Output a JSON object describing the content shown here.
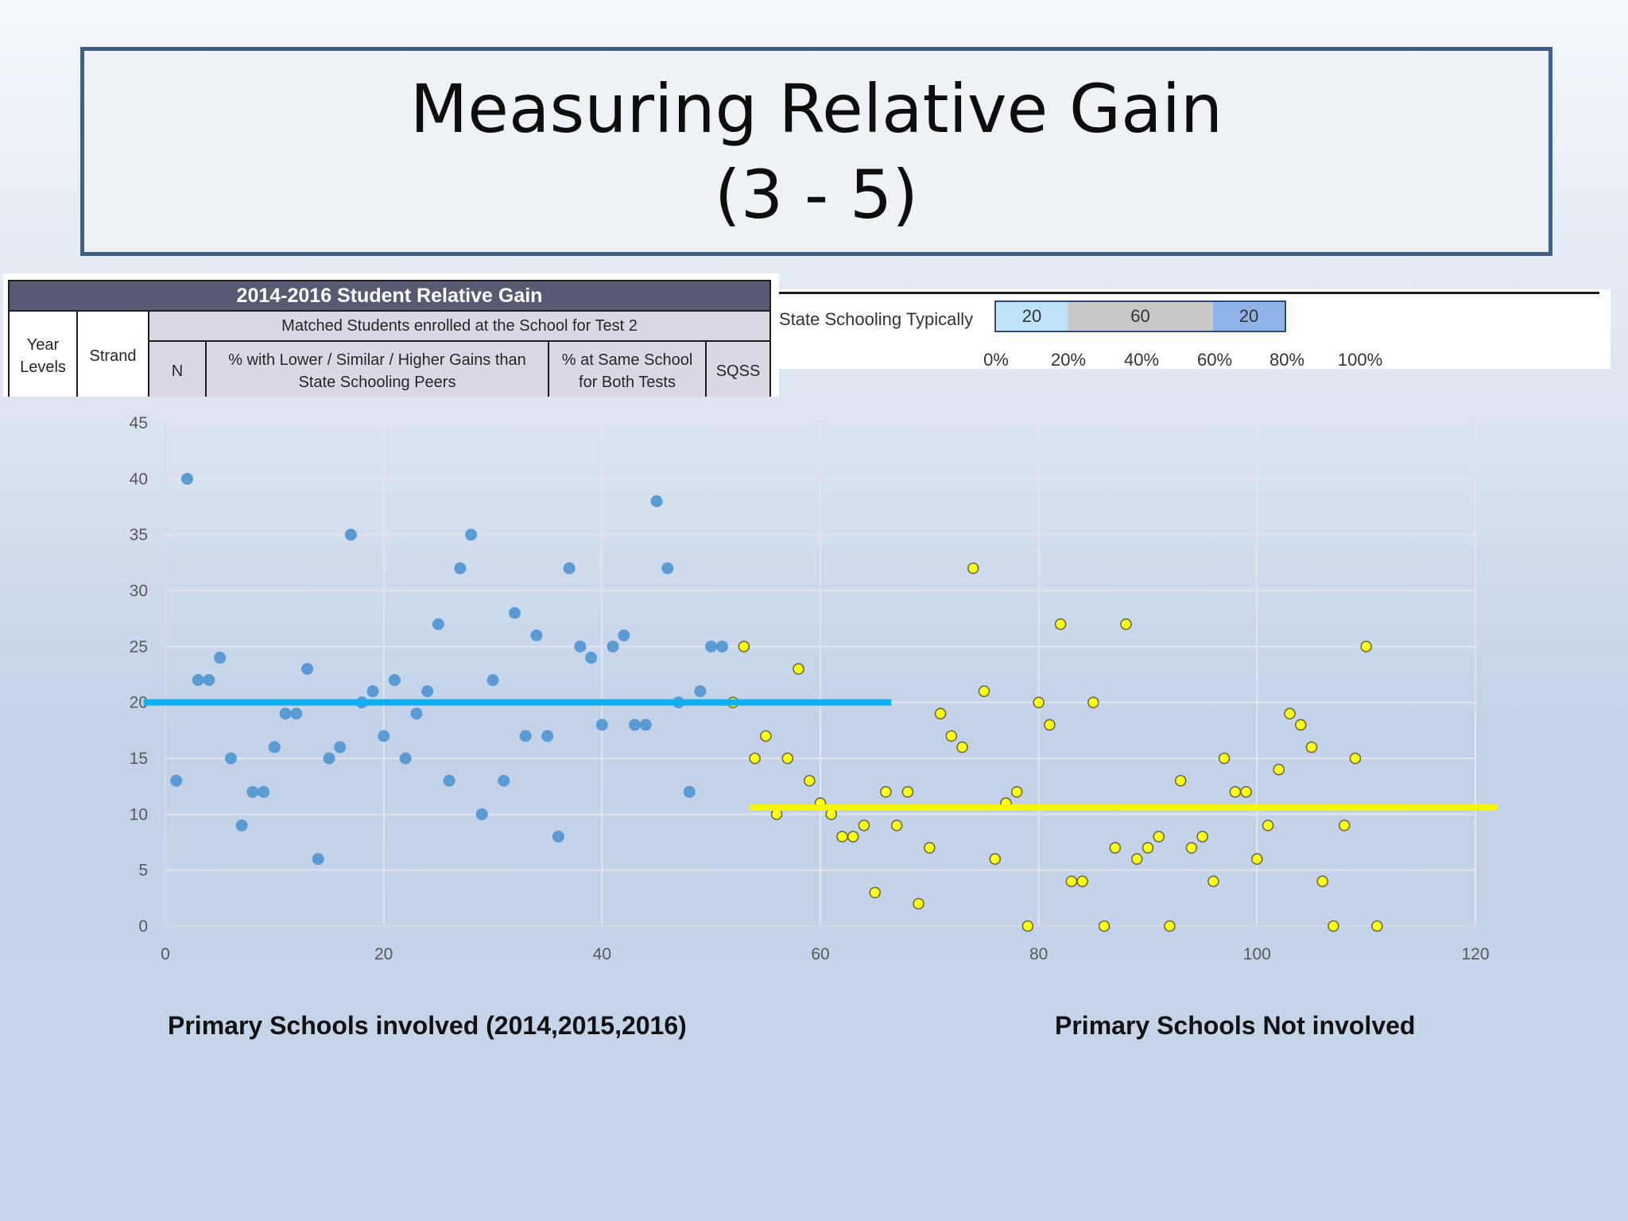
{
  "slide": {
    "title_line1": "Measuring Relative Gain",
    "title_line2": "(3 - 5)"
  },
  "table_header": {
    "title": "2014-2016 Student Relative Gain",
    "year_levels": "Year Levels",
    "strand": "Strand",
    "matched": "Matched Students enrolled at the School for Test 2",
    "n": "N",
    "pct_gains": "% with Lower / Similar / Higher Gains than State Schooling Peers",
    "pct_same": "% at Same School for Both Tests",
    "sqss": "SQSS",
    "colors": {
      "title_bg": "#565a73",
      "subheader_bg": "#d9d9e6"
    }
  },
  "state_bar": {
    "label": "State Schooling Typically",
    "segments": [
      {
        "value": "20",
        "color": "#bfe3fb"
      },
      {
        "value": "60",
        "color": "#c8c8c8"
      },
      {
        "value": "20",
        "color": "#8fb2e8"
      }
    ],
    "axis": [
      "0%",
      "20%",
      "40%",
      "60%",
      "80%",
      "100%"
    ]
  },
  "chart_data": {
    "type": "scatter",
    "xlim": [
      0,
      120
    ],
    "ylim": [
      0,
      45
    ],
    "x_ticks": [
      "0",
      "20",
      "40",
      "60",
      "80",
      "100",
      "120"
    ],
    "y_ticks": [
      "0",
      "5",
      "10",
      "15",
      "20",
      "25",
      "30",
      "35",
      "40",
      "45"
    ],
    "grid": true,
    "series": [
      {
        "color": "#5b9bd5",
        "points": [
          [
            1,
            13
          ],
          [
            2,
            40
          ],
          [
            3,
            22
          ],
          [
            4,
            22
          ],
          [
            5,
            24
          ],
          [
            6,
            15
          ],
          [
            7,
            9
          ],
          [
            8,
            12
          ],
          [
            9,
            12
          ],
          [
            10,
            16
          ],
          [
            11,
            19
          ],
          [
            12,
            19
          ],
          [
            13,
            23
          ],
          [
            14,
            6
          ],
          [
            15,
            15
          ],
          [
            16,
            16
          ],
          [
            17,
            35
          ],
          [
            18,
            20
          ],
          [
            19,
            21
          ],
          [
            20,
            17
          ],
          [
            21,
            22
          ],
          [
            22,
            15
          ],
          [
            23,
            19
          ],
          [
            24,
            21
          ],
          [
            25,
            27
          ],
          [
            26,
            13
          ],
          [
            27,
            32
          ],
          [
            28,
            35
          ],
          [
            29,
            10
          ],
          [
            30,
            22
          ],
          [
            31,
            13
          ],
          [
            32,
            28
          ],
          [
            33,
            17
          ],
          [
            34,
            26
          ],
          [
            35,
            17
          ],
          [
            36,
            8
          ],
          [
            37,
            32
          ],
          [
            38,
            25
          ],
          [
            39,
            24
          ],
          [
            40,
            18
          ],
          [
            41,
            25
          ],
          [
            42,
            26
          ],
          [
            43,
            18
          ],
          [
            44,
            18
          ],
          [
            45,
            38
          ],
          [
            46,
            32
          ],
          [
            47,
            20
          ],
          [
            48,
            12
          ],
          [
            49,
            21
          ],
          [
            50,
            25
          ],
          [
            51,
            25
          ]
        ],
        "mean_line": {
          "y": 20,
          "x_range": [
            -2,
            66.5
          ],
          "color": "#0fb0f0"
        }
      },
      {
        "color": "#ffff1a",
        "points": [
          [
            52,
            20
          ],
          [
            53,
            25
          ],
          [
            54,
            15
          ],
          [
            55,
            17
          ],
          [
            56,
            10
          ],
          [
            57,
            15
          ],
          [
            58,
            23
          ],
          [
            59,
            13
          ],
          [
            60,
            11
          ],
          [
            61,
            10
          ],
          [
            62,
            8
          ],
          [
            63,
            8
          ],
          [
            64,
            9
          ],
          [
            65,
            3
          ],
          [
            66,
            12
          ],
          [
            67,
            9
          ],
          [
            68,
            12
          ],
          [
            69,
            2
          ],
          [
            70,
            7
          ],
          [
            71,
            19
          ],
          [
            72,
            17
          ],
          [
            73,
            16
          ],
          [
            74,
            32
          ],
          [
            75,
            21
          ],
          [
            76,
            6
          ],
          [
            77,
            11
          ],
          [
            78,
            12
          ],
          [
            79,
            0
          ],
          [
            80,
            20
          ],
          [
            81,
            18
          ],
          [
            82,
            27
          ],
          [
            83,
            4
          ],
          [
            84,
            4
          ],
          [
            85,
            20
          ],
          [
            86,
            0
          ],
          [
            87,
            7
          ],
          [
            88,
            27
          ],
          [
            89,
            6
          ],
          [
            90,
            7
          ],
          [
            91,
            8
          ],
          [
            92,
            0
          ],
          [
            93,
            13
          ],
          [
            94,
            7
          ],
          [
            95,
            8
          ],
          [
            96,
            4
          ],
          [
            97,
            15
          ],
          [
            98,
            12
          ],
          [
            99,
            12
          ],
          [
            100,
            6
          ],
          [
            101,
            9
          ],
          [
            102,
            14
          ],
          [
            103,
            19
          ],
          [
            104,
            18
          ],
          [
            105,
            16
          ],
          [
            106,
            4
          ],
          [
            107,
            0
          ],
          [
            108,
            9
          ],
          [
            109,
            15
          ],
          [
            110,
            25
          ],
          [
            111,
            0
          ]
        ],
        "mean_line": {
          "y": 10.6,
          "x_range": [
            53.5,
            122
          ],
          "color": "#f5f50a"
        }
      }
    ]
  },
  "captions": {
    "involved": "Primary Schools involved (2014,2015,2016)",
    "not_involved": "Primary  Schools Not involved"
  }
}
